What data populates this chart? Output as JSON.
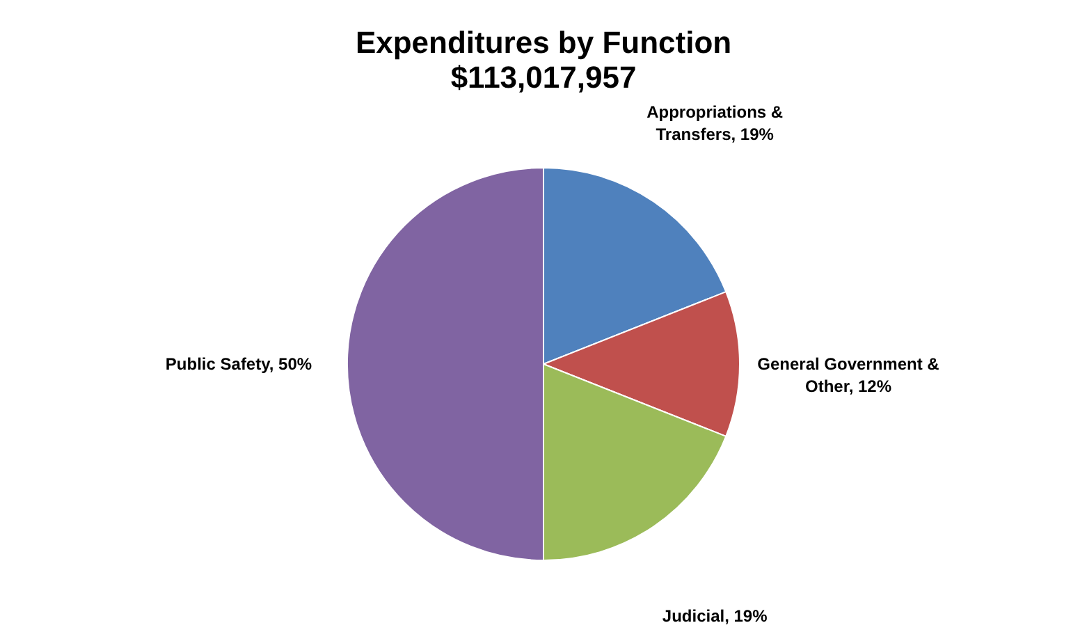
{
  "chart_data": {
    "type": "pie",
    "title": "Expenditures by Function",
    "subtitle": "$113,017,957",
    "categories": [
      "Appropriations & Transfers",
      "General Government & Other",
      "Judicial",
      "Public Safety"
    ],
    "values": [
      19,
      12,
      19,
      50
    ],
    "colors": [
      "#4f81bd",
      "#c0504d",
      "#9bbb59",
      "#8064a2"
    ],
    "value_labels": [
      "19%",
      "12%",
      "19%",
      "50%"
    ],
    "legend": false
  }
}
